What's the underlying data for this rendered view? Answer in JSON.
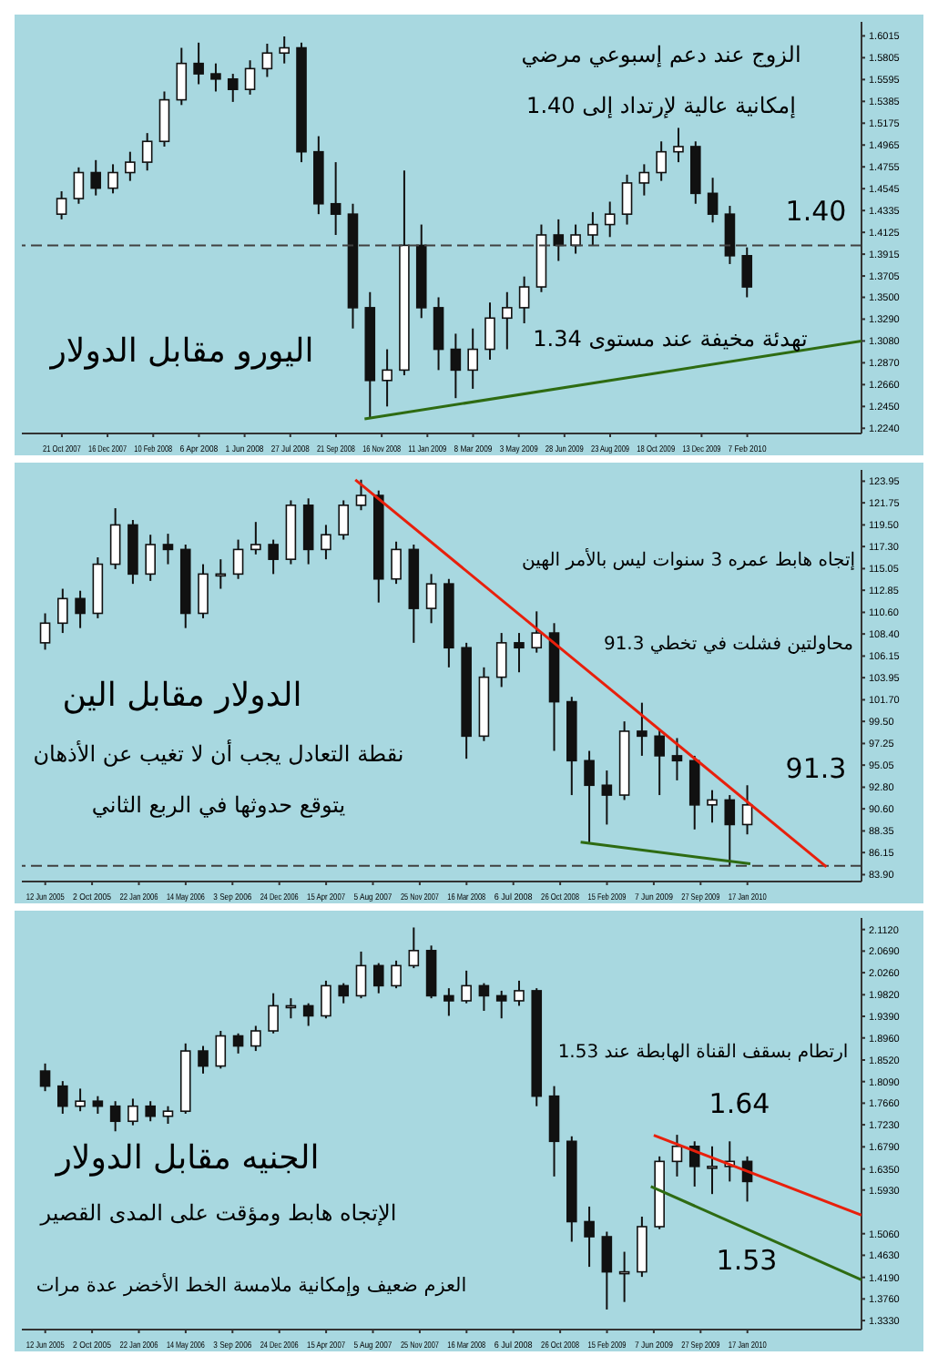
{
  "chart_data": [
    {
      "type": "candlestick",
      "xlim": [
        "2007-09-02",
        "2010-06-27"
      ],
      "xticks": [
        {
          "value": "2007-10-21",
          "label": "21 Oct 2007"
        },
        {
          "value": "2007-12-16",
          "label": "16 Dec 2007"
        },
        {
          "value": "2008-02-10",
          "label": "10 Feb 2008"
        },
        {
          "value": "2008-04-06",
          "label": "6 Apr 2008"
        },
        {
          "value": "2008-06-01",
          "label": "1 Jun 2008"
        },
        {
          "value": "2008-07-27",
          "label": "27 Jul 2008"
        },
        {
          "value": "2008-09-21",
          "label": "21 Sep 2008"
        },
        {
          "value": "2008-11-16",
          "label": "16 Nov 2008"
        },
        {
          "value": "2009-01-11",
          "label": "11 Jan 2009"
        },
        {
          "value": "2009-03-08",
          "label": "8 Mar 2009"
        },
        {
          "value": "2009-05-03",
          "label": "3 May 2009"
        },
        {
          "value": "2009-06-28",
          "label": "28 Jun 2009"
        },
        {
          "value": "2009-08-23",
          "label": "23 Aug 2009"
        },
        {
          "value": "2009-10-18",
          "label": "18 Oct 2009"
        },
        {
          "value": "2009-12-13",
          "label": "13 Dec 2009"
        },
        {
          "value": "2010-02-07",
          "label": "7 Feb 2010"
        }
      ],
      "ylim": [
        1.219,
        1.615
      ],
      "yticks": [
        {
          "value": 1.224,
          "label": "1.2240"
        },
        {
          "value": 1.245,
          "label": "1.2450"
        },
        {
          "value": 1.266,
          "label": "1.2660"
        },
        {
          "value": 1.287,
          "label": "1.2870"
        },
        {
          "value": 1.308,
          "label": "1.3080"
        },
        {
          "value": 1.329,
          "label": "1.3290"
        },
        {
          "value": 1.35,
          "label": "1.3500"
        },
        {
          "value": 1.3705,
          "label": "1.3705"
        },
        {
          "value": 1.3915,
          "label": "1.3915"
        },
        {
          "value": 1.4125,
          "label": "1.4125"
        },
        {
          "value": 1.4335,
          "label": "1.4335"
        },
        {
          "value": 1.4545,
          "label": "1.4545"
        },
        {
          "value": 1.4755,
          "label": "1.4755"
        },
        {
          "value": 1.4965,
          "label": "1.4965"
        },
        {
          "value": 1.5175,
          "label": "1.5175"
        },
        {
          "value": 1.5385,
          "label": "1.5385"
        },
        {
          "value": 1.5595,
          "label": "1.5595"
        },
        {
          "value": 1.5805,
          "label": "1.5805"
        },
        {
          "value": 1.6015,
          "label": "1.6015"
        }
      ],
      "x": [
        "2007-10-21",
        "2007-11-11",
        "2007-12-02",
        "2007-12-23",
        "2008-01-13",
        "2008-02-03",
        "2008-02-24",
        "2008-03-16",
        "2008-04-06",
        "2008-04-27",
        "2008-05-18",
        "2008-06-08",
        "2008-06-29",
        "2008-07-20",
        "2008-08-10",
        "2008-08-31",
        "2008-09-21",
        "2008-10-12",
        "2008-11-02",
        "2008-11-23",
        "2008-12-14",
        "2009-01-04",
        "2009-01-25",
        "2009-02-15",
        "2009-03-08",
        "2009-03-29",
        "2009-04-19",
        "2009-05-10",
        "2009-05-31",
        "2009-06-21",
        "2009-07-12",
        "2009-08-02",
        "2009-08-23",
        "2009-09-13",
        "2009-10-04",
        "2009-10-25",
        "2009-11-15",
        "2009-12-06",
        "2009-12-27",
        "2010-01-17",
        "2010-02-07"
      ],
      "ohlc": [
        [
          1.43,
          1.452,
          1.425,
          1.445
        ],
        [
          1.445,
          1.475,
          1.44,
          1.47
        ],
        [
          1.47,
          1.482,
          1.448,
          1.455
        ],
        [
          1.455,
          1.478,
          1.45,
          1.47
        ],
        [
          1.47,
          1.49,
          1.462,
          1.48
        ],
        [
          1.48,
          1.508,
          1.472,
          1.5
        ],
        [
          1.5,
          1.548,
          1.495,
          1.54
        ],
        [
          1.54,
          1.59,
          1.535,
          1.575
        ],
        [
          1.575,
          1.595,
          1.555,
          1.565
        ],
        [
          1.565,
          1.575,
          1.548,
          1.56
        ],
        [
          1.56,
          1.565,
          1.538,
          1.55
        ],
        [
          1.55,
          1.578,
          1.545,
          1.57
        ],
        [
          1.57,
          1.594,
          1.562,
          1.585
        ],
        [
          1.585,
          1.601,
          1.575,
          1.59
        ],
        [
          1.59,
          1.595,
          1.48,
          1.49
        ],
        [
          1.49,
          1.505,
          1.43,
          1.44
        ],
        [
          1.44,
          1.48,
          1.41,
          1.43
        ],
        [
          1.43,
          1.44,
          1.32,
          1.34
        ],
        [
          1.34,
          1.355,
          1.233,
          1.27
        ],
        [
          1.27,
          1.3,
          1.245,
          1.28
        ],
        [
          1.28,
          1.472,
          1.275,
          1.4
        ],
        [
          1.4,
          1.42,
          1.33,
          1.34
        ],
        [
          1.34,
          1.35,
          1.28,
          1.3
        ],
        [
          1.3,
          1.315,
          1.253,
          1.28
        ],
        [
          1.28,
          1.32,
          1.262,
          1.3
        ],
        [
          1.3,
          1.345,
          1.29,
          1.33
        ],
        [
          1.33,
          1.355,
          1.3,
          1.34
        ],
        [
          1.34,
          1.37,
          1.325,
          1.36
        ],
        [
          1.36,
          1.42,
          1.355,
          1.41
        ],
        [
          1.41,
          1.425,
          1.385,
          1.4
        ],
        [
          1.4,
          1.42,
          1.392,
          1.41
        ],
        [
          1.41,
          1.432,
          1.4,
          1.42
        ],
        [
          1.42,
          1.442,
          1.408,
          1.43
        ],
        [
          1.43,
          1.468,
          1.42,
          1.46
        ],
        [
          1.46,
          1.478,
          1.448,
          1.47
        ],
        [
          1.47,
          1.5,
          1.462,
          1.49
        ],
        [
          1.49,
          1.513,
          1.48,
          1.495
        ],
        [
          1.495,
          1.5,
          1.44,
          1.45
        ],
        [
          1.45,
          1.465,
          1.422,
          1.43
        ],
        [
          1.43,
          1.438,
          1.382,
          1.39
        ],
        [
          1.39,
          1.398,
          1.35,
          1.36
        ]
      ],
      "series": [
        {
          "type": "line",
          "color": "#2e6b12",
          "x": [
            "2008-10-26",
            "2010-06-27"
          ],
          "values": [
            1.233,
            1.308
          ]
        }
      ],
      "ref_lines": [
        {
          "axis": "y",
          "value": 1.4,
          "line_style": "dashed",
          "color": "#404040"
        }
      ],
      "annotations": [
        "الزوج عند دعم إسبوعي مرضي",
        "إمكانية عالية لإرتداد إلى 1.40",
        "1.40",
        "تهدئة مخيفة عند مستوى 1.34",
        "اليورو مقابل الدولار"
      ]
    },
    {
      "type": "candlestick",
      "xlim": [
        "2005-04-17",
        "2010-10-17"
      ],
      "xticks": [
        {
          "value": "2005-06-12",
          "label": "12 Jun 2005"
        },
        {
          "value": "2005-10-02",
          "label": "2 Oct 2005"
        },
        {
          "value": "2006-01-22",
          "label": "22 Jan 2006"
        },
        {
          "value": "2006-05-14",
          "label": "14 May 2006"
        },
        {
          "value": "2006-09-03",
          "label": "3 Sep 2006"
        },
        {
          "value": "2006-12-24",
          "label": "24 Dec 2006"
        },
        {
          "value": "2007-04-15",
          "label": "15 Apr 2007"
        },
        {
          "value": "2007-08-05",
          "label": "5 Aug 2007"
        },
        {
          "value": "2007-11-25",
          "label": "25 Nov 2007"
        },
        {
          "value": "2008-03-16",
          "label": "16 Mar 2008"
        },
        {
          "value": "2008-07-06",
          "label": "6 Jul 2008"
        },
        {
          "value": "2008-10-26",
          "label": "26 Oct 2008"
        },
        {
          "value": "2009-02-15",
          "label": "15 Feb 2009"
        },
        {
          "value": "2009-06-07",
          "label": "7 Jun 2009"
        },
        {
          "value": "2009-09-27",
          "label": "27 Sep 2009"
        },
        {
          "value": "2010-01-17",
          "label": "17 Jan 2010"
        }
      ],
      "ylim": [
        83.2,
        125.1
      ],
      "yticks": [
        {
          "value": 83.9,
          "label": "83.90"
        },
        {
          "value": 86.15,
          "label": "86.15"
        },
        {
          "value": 88.35,
          "label": "88.35"
        },
        {
          "value": 90.6,
          "label": "90.60"
        },
        {
          "value": 92.8,
          "label": "92.80"
        },
        {
          "value": 95.05,
          "label": "95.05"
        },
        {
          "value": 97.25,
          "label": "97.25"
        },
        {
          "value": 99.5,
          "label": "99.50"
        },
        {
          "value": 101.7,
          "label": "101.70"
        },
        {
          "value": 103.95,
          "label": "103.95"
        },
        {
          "value": 106.15,
          "label": "106.15"
        },
        {
          "value": 108.4,
          "label": "108.40"
        },
        {
          "value": 110.6,
          "label": "110.60"
        },
        {
          "value": 112.85,
          "label": "112.85"
        },
        {
          "value": 115.05,
          "label": "115.05"
        },
        {
          "value": 117.3,
          "label": "117.30"
        },
        {
          "value": 119.5,
          "label": "119.50"
        },
        {
          "value": 121.75,
          "label": "121.75"
        },
        {
          "value": 123.95,
          "label": "123.95"
        }
      ],
      "x": [
        "2005-06-12",
        "2005-07-24",
        "2005-09-04",
        "2005-10-16",
        "2005-11-27",
        "2006-01-08",
        "2006-02-19",
        "2006-04-02",
        "2006-05-14",
        "2006-06-25",
        "2006-08-06",
        "2006-09-17",
        "2006-10-29",
        "2006-12-10",
        "2007-01-21",
        "2007-03-04",
        "2007-04-15",
        "2007-05-27",
        "2007-07-08",
        "2007-08-19",
        "2007-09-30",
        "2007-11-11",
        "2007-12-23",
        "2008-02-03",
        "2008-03-16",
        "2008-04-27",
        "2008-06-08",
        "2008-07-20",
        "2008-08-31",
        "2008-10-12",
        "2008-11-23",
        "2009-01-04",
        "2009-02-15",
        "2009-03-29",
        "2009-05-10",
        "2009-06-21",
        "2009-08-02",
        "2009-09-13",
        "2009-10-25",
        "2009-12-06",
        "2010-01-17"
      ],
      "ohlc": [
        [
          107.5,
          110.5,
          106.8,
          109.5
        ],
        [
          109.5,
          113.0,
          108.5,
          112.0
        ],
        [
          112.0,
          112.8,
          109.0,
          110.5
        ],
        [
          110.5,
          116.2,
          110.0,
          115.5
        ],
        [
          115.5,
          121.2,
          115.0,
          119.5
        ],
        [
          119.5,
          120.0,
          113.5,
          114.5
        ],
        [
          114.5,
          118.5,
          113.8,
          117.5
        ],
        [
          117.5,
          118.6,
          115.5,
          117.0
        ],
        [
          117.0,
          117.5,
          109.0,
          110.5
        ],
        [
          110.5,
          115.5,
          110.0,
          114.5
        ],
        [
          114.5,
          116.0,
          113.0,
          114.5
        ],
        [
          114.5,
          118.0,
          114.0,
          117.0
        ],
        [
          117.0,
          119.8,
          116.5,
          117.5
        ],
        [
          117.5,
          118.0,
          114.5,
          116.0
        ],
        [
          116.0,
          122.0,
          115.5,
          121.5
        ],
        [
          121.5,
          122.2,
          115.5,
          117.0
        ],
        [
          117.0,
          119.5,
          116.0,
          118.5
        ],
        [
          118.5,
          122.0,
          118.0,
          121.5
        ],
        [
          121.5,
          124.1,
          121.0,
          122.5
        ],
        [
          122.5,
          123.0,
          111.6,
          114.0
        ],
        [
          114.0,
          117.8,
          113.5,
          117.0
        ],
        [
          117.0,
          117.5,
          107.5,
          111.0
        ],
        [
          111.0,
          114.5,
          109.5,
          113.5
        ],
        [
          113.5,
          114.0,
          105.0,
          107.0
        ],
        [
          107.0,
          107.5,
          95.7,
          98.0
        ],
        [
          98.0,
          105.0,
          97.5,
          104.0
        ],
        [
          104.0,
          108.5,
          103.0,
          107.5
        ],
        [
          107.5,
          108.5,
          104.5,
          107.0
        ],
        [
          107.0,
          110.7,
          106.5,
          108.5
        ],
        [
          108.5,
          109.5,
          96.5,
          101.5
        ],
        [
          101.5,
          102.0,
          92.0,
          95.5
        ],
        [
          95.5,
          96.5,
          87.2,
          93.0
        ],
        [
          93.0,
          94.5,
          89.0,
          92.0
        ],
        [
          92.0,
          99.5,
          91.5,
          98.5
        ],
        [
          98.5,
          101.4,
          96.0,
          98.0
        ],
        [
          98.0,
          98.6,
          92.0,
          96.0
        ],
        [
          96.0,
          97.8,
          93.5,
          95.5
        ],
        [
          95.5,
          96.0,
          88.5,
          91.0
        ],
        [
          91.0,
          92.5,
          89.2,
          91.5
        ],
        [
          91.5,
          92.0,
          84.8,
          89.0
        ],
        [
          89.0,
          93.0,
          88.0,
          91.0
        ]
      ],
      "series": [
        {
          "type": "line",
          "color": "#e8200c",
          "x": [
            "2007-06-24",
            "2010-07-25"
          ],
          "values": [
            124.1,
            84.7
          ]
        },
        {
          "type": "line",
          "color": "#2e6b12",
          "x": [
            "2008-12-14",
            "2010-01-24"
          ],
          "values": [
            87.2,
            85.0
          ]
        }
      ],
      "ref_lines": [
        {
          "axis": "y",
          "value": 84.8,
          "line_style": "dashed",
          "color": "#404040"
        }
      ],
      "annotations": [
        "إتجاه هابط عمره 3 سنوات ليس بالأمر الهين",
        "محاولتين فشلت في تخطي 91.3",
        "91.3",
        "الدولار مقابل الين",
        "نقطة التعادل يجب أن لا تغيب عن الأذهان",
        "يتوقع حدوثها في الربع الثاني"
      ]
    },
    {
      "type": "candlestick",
      "xlim": [
        "2005-04-17",
        "2010-10-17"
      ],
      "xticks": [
        {
          "value": "2005-06-12",
          "label": "12 Jun 2005"
        },
        {
          "value": "2005-10-02",
          "label": "2 Oct 2005"
        },
        {
          "value": "2006-01-22",
          "label": "22 Jan 2006"
        },
        {
          "value": "2006-05-14",
          "label": "14 May 2006"
        },
        {
          "value": "2006-09-03",
          "label": "3 Sep 2006"
        },
        {
          "value": "2006-12-24",
          "label": "24 Dec 2006"
        },
        {
          "value": "2007-04-15",
          "label": "15 Apr 2007"
        },
        {
          "value": "2007-08-05",
          "label": "5 Aug 2007"
        },
        {
          "value": "2007-11-25",
          "label": "25 Nov 2007"
        },
        {
          "value": "2008-03-16",
          "label": "16 Mar 2008"
        },
        {
          "value": "2008-07-06",
          "label": "6 Jul 2008"
        },
        {
          "value": "2008-10-26",
          "label": "26 Oct 2008"
        },
        {
          "value": "2009-02-15",
          "label": "15 Feb 2009"
        },
        {
          "value": "2009-06-07",
          "label": "7 Jun 2009"
        },
        {
          "value": "2009-09-27",
          "label": "27 Sep 2009"
        },
        {
          "value": "2010-01-17",
          "label": "17 Jan 2010"
        }
      ],
      "ylim": [
        1.315,
        2.135
      ],
      "yticks": [
        {
          "value": 1.333,
          "label": "1.3330"
        },
        {
          "value": 1.376,
          "label": "1.3760"
        },
        {
          "value": 1.419,
          "label": "1.4190"
        },
        {
          "value": 1.463,
          "label": "1.4630"
        },
        {
          "value": 1.506,
          "label": "1.5060"
        },
        {
          "value": 1.593,
          "label": "1.5930"
        },
        {
          "value": 1.635,
          "label": "1.6350"
        },
        {
          "value": 1.679,
          "label": "1.6790"
        },
        {
          "value": 1.723,
          "label": "1.7230"
        },
        {
          "value": 1.766,
          "label": "1.7660"
        },
        {
          "value": 1.809,
          "label": "1.8090"
        },
        {
          "value": 1.852,
          "label": "1.8520"
        },
        {
          "value": 1.896,
          "label": "1.8960"
        },
        {
          "value": 1.939,
          "label": "1.9390"
        },
        {
          "value": 1.982,
          "label": "1.9820"
        },
        {
          "value": 2.026,
          "label": "2.0260"
        },
        {
          "value": 2.069,
          "label": "2.0690"
        },
        {
          "value": 2.112,
          "label": "2.1120"
        }
      ],
      "x": [
        "2005-06-12",
        "2005-07-24",
        "2005-09-04",
        "2005-10-16",
        "2005-11-27",
        "2006-01-08",
        "2006-02-19",
        "2006-04-02",
        "2006-05-14",
        "2006-06-25",
        "2006-08-06",
        "2006-09-17",
        "2006-10-29",
        "2006-12-10",
        "2007-01-21",
        "2007-03-04",
        "2007-04-15",
        "2007-05-27",
        "2007-07-08",
        "2007-08-19",
        "2007-09-30",
        "2007-11-11",
        "2007-12-23",
        "2008-02-03",
        "2008-03-16",
        "2008-04-27",
        "2008-06-08",
        "2008-07-20",
        "2008-08-31",
        "2008-10-12",
        "2008-11-23",
        "2009-01-04",
        "2009-02-15",
        "2009-03-29",
        "2009-05-10",
        "2009-06-21",
        "2009-08-02",
        "2009-09-13",
        "2009-10-25",
        "2009-12-06",
        "2010-01-17"
      ],
      "ohlc": [
        [
          1.83,
          1.845,
          1.79,
          1.8
        ],
        [
          1.8,
          1.81,
          1.745,
          1.76
        ],
        [
          1.76,
          1.795,
          1.75,
          1.77
        ],
        [
          1.77,
          1.78,
          1.745,
          1.76
        ],
        [
          1.76,
          1.77,
          1.71,
          1.73
        ],
        [
          1.73,
          1.775,
          1.722,
          1.76
        ],
        [
          1.76,
          1.77,
          1.73,
          1.74
        ],
        [
          1.74,
          1.76,
          1.725,
          1.75
        ],
        [
          1.75,
          1.885,
          1.745,
          1.87
        ],
        [
          1.87,
          1.88,
          1.825,
          1.84
        ],
        [
          1.84,
          1.91,
          1.835,
          1.9
        ],
        [
          1.9,
          1.905,
          1.865,
          1.88
        ],
        [
          1.88,
          1.92,
          1.87,
          1.91
        ],
        [
          1.91,
          1.985,
          1.905,
          1.96
        ],
        [
          1.96,
          1.975,
          1.935,
          1.96
        ],
        [
          1.96,
          1.965,
          1.92,
          1.94
        ],
        [
          1.94,
          2.01,
          1.935,
          2.0
        ],
        [
          2.0,
          2.005,
          1.965,
          1.98
        ],
        [
          1.98,
          2.068,
          1.975,
          2.04
        ],
        [
          2.04,
          2.045,
          1.985,
          2.0
        ],
        [
          2.0,
          2.05,
          1.995,
          2.04
        ],
        [
          2.04,
          2.116,
          2.035,
          2.07
        ],
        [
          2.07,
          2.08,
          1.975,
          1.98
        ],
        [
          1.98,
          1.995,
          1.94,
          1.97
        ],
        [
          1.97,
          2.03,
          1.965,
          2.0
        ],
        [
          2.0,
          2.005,
          1.95,
          1.98
        ],
        [
          1.98,
          1.99,
          1.935,
          1.97
        ],
        [
          1.97,
          2.01,
          1.96,
          1.99
        ],
        [
          1.99,
          1.995,
          1.76,
          1.78
        ],
        [
          1.78,
          1.8,
          1.62,
          1.69
        ],
        [
          1.69,
          1.7,
          1.49,
          1.53
        ],
        [
          1.53,
          1.56,
          1.44,
          1.5
        ],
        [
          1.5,
          1.51,
          1.355,
          1.43
        ],
        [
          1.43,
          1.47,
          1.37,
          1.43
        ],
        [
          1.43,
          1.54,
          1.42,
          1.52
        ],
        [
          1.52,
          1.66,
          1.515,
          1.65
        ],
        [
          1.65,
          1.703,
          1.62,
          1.68
        ],
        [
          1.68,
          1.69,
          1.6,
          1.64
        ],
        [
          1.64,
          1.68,
          1.585,
          1.64
        ],
        [
          1.64,
          1.69,
          1.61,
          1.65
        ],
        [
          1.65,
          1.66,
          1.57,
          1.61
        ]
      ],
      "series": [
        {
          "type": "line",
          "color": "#e8200c",
          "x": [
            "2009-06-07",
            "2010-10-17"
          ],
          "values": [
            1.702,
            1.543
          ]
        },
        {
          "type": "line",
          "color": "#2e6b12",
          "x": [
            "2009-05-31",
            "2010-10-17"
          ],
          "values": [
            1.6,
            1.414
          ]
        }
      ],
      "annotations": [
        "ارتطام بسقف القناة الهابطة عند 1.53",
        "1.64",
        "الجنيه مقابل الدولار",
        "الإتجاه هابط ومؤقت على المدى القصير",
        "العزم ضعيف وإمكانية ملامسة الخط الأخضر عدة مرات",
        "1.53"
      ]
    }
  ]
}
